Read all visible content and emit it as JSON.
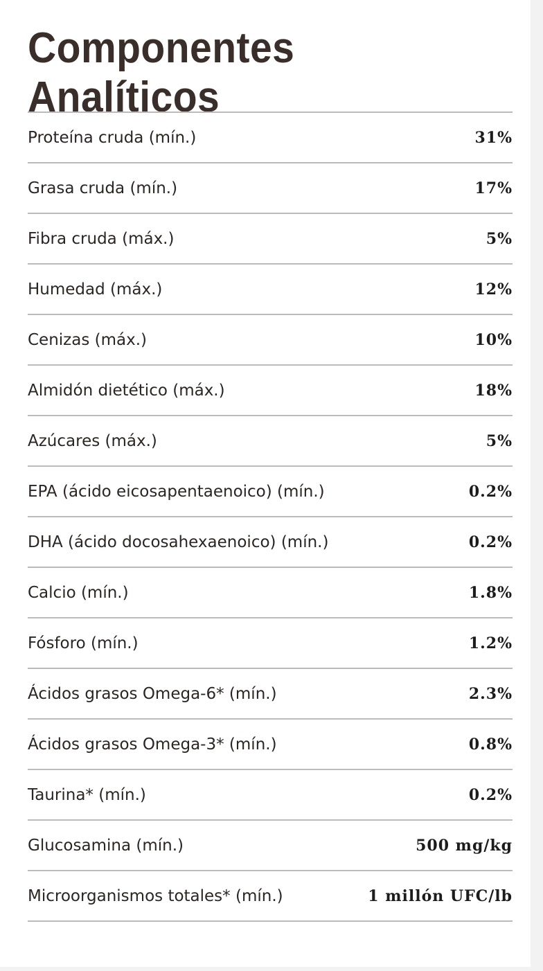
{
  "header": {
    "title": "Componentes Analíticos"
  },
  "table": {
    "rows": [
      [
        "Proteína cruda (mín.)",
        "31%"
      ],
      [
        "Grasa cruda (mín.)",
        "17%"
      ],
      [
        "Fibra cruda (máx.)",
        "5%"
      ],
      [
        "Humedad (máx.)",
        "12%"
      ],
      [
        "Cenizas (máx.)",
        "10%"
      ],
      [
        "Almidón dietético (máx.)",
        "18%"
      ],
      [
        "Azúcares (máx.)",
        "5%"
      ],
      [
        "EPA (ácido eicosapentaenoico) (mín.)",
        "0.2%"
      ],
      [
        "DHA (ácido docosahexaenoico) (mín.)",
        "0.2%"
      ],
      [
        "Calcio (mín.)",
        "1.8%"
      ],
      [
        "Fósforo (mín.)",
        "1.2%"
      ],
      [
        "Ácidos grasos Omega-6* (mín.)",
        "2.3%"
      ],
      [
        "Ácidos grasos Omega-3* (mín.)",
        "0.8%"
      ],
      [
        "Taurina* (mín.)",
        "0.2%"
      ],
      [
        "Glucosamina (mín.)",
        "500 mg/kg"
      ],
      [
        "Microorganismos totales* (mín.)",
        "1 millón UFC/lb"
      ]
    ]
  }
}
